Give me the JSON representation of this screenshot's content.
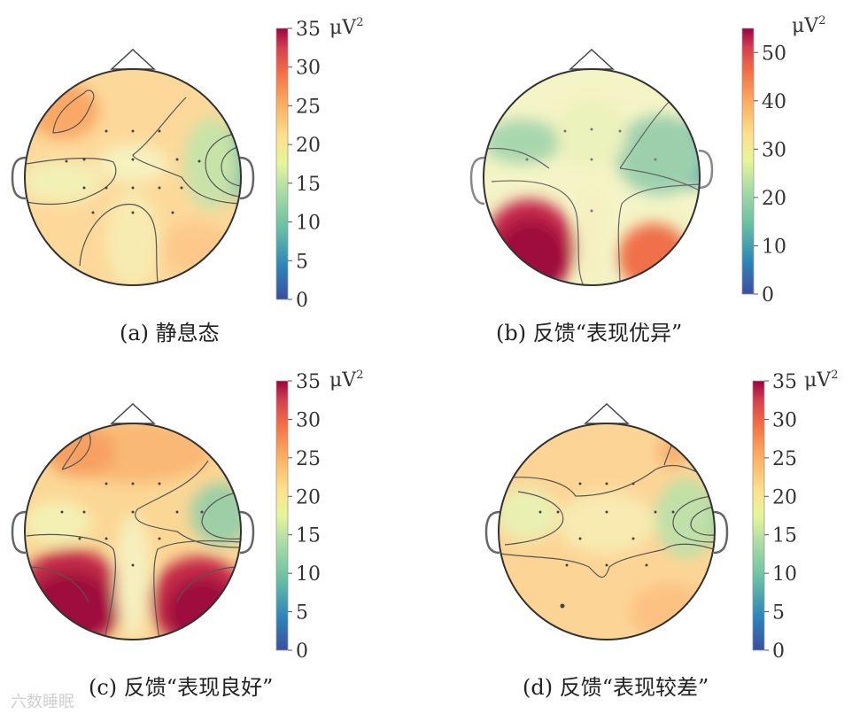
{
  "panels": [
    {
      "caption": "(a) 静息态",
      "scale_ticks": [
        "0",
        "5",
        "10",
        "15",
        "20",
        "25",
        "30",
        "35"
      ],
      "scale_unit": "μV",
      "scale_unit_sup": "2",
      "scale_max": 35
    },
    {
      "caption": "(b) 反馈“表现优异”",
      "scale_ticks": [
        "0",
        "10",
        "20",
        "30",
        "40",
        "50"
      ],
      "scale_unit": "μV",
      "scale_unit_sup": "2",
      "scale_max": 55
    },
    {
      "caption": "(c) 反馈“表现良好”",
      "scale_ticks": [
        "0",
        "5",
        "10",
        "15",
        "20",
        "25",
        "30",
        "35"
      ],
      "scale_unit": "μV",
      "scale_unit_sup": "2",
      "scale_max": 35
    },
    {
      "caption": "(d) 反馈“表现较差”",
      "scale_ticks": [
        "0",
        "5",
        "10",
        "15",
        "20",
        "25",
        "30",
        "35"
      ],
      "scale_unit": "μV",
      "scale_unit_sup": "2",
      "scale_max": 35
    }
  ],
  "colormap": [
    "#3b4ea0",
    "#2b83ba",
    "#66bfa4",
    "#abdda4",
    "#e6f598",
    "#fee08b",
    "#fdae61",
    "#f46d43",
    "#d53e4f",
    "#9e0142"
  ],
  "watermark": "六数睡眠"
}
